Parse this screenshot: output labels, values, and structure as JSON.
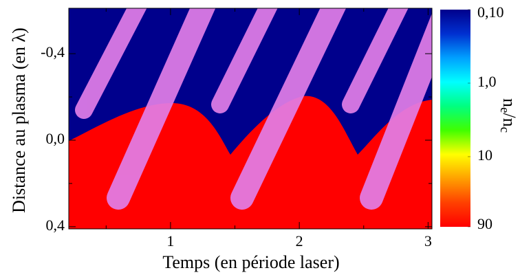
{
  "chart_data": {
    "type": "heatmap",
    "xlabel": "Temps (en période laser)",
    "ylabel": "Distance au plasma (en λ)",
    "xlim": [
      0.21,
      3.03
    ],
    "xticks": [
      1,
      2,
      3
    ],
    "xticks_minor": [
      0.5,
      1.5,
      2.5
    ],
    "ylim": [
      -0.61,
      0.41
    ],
    "y_inverted": true,
    "yticks": [
      {
        "value": -0.4,
        "label": "-0,4"
      },
      {
        "value": 0,
        "label": "0,0"
      },
      {
        "value": 0.4,
        "label": "0,4"
      }
    ],
    "yticks_minor": [
      -0.2,
      0.2
    ],
    "colorbar": {
      "label": [
        "n",
        "e",
        "/n",
        "c"
      ],
      "log": true,
      "lim": [
        0.1,
        90
      ],
      "ticks": [
        {
          "value": 0.1,
          "label": "0,10"
        },
        {
          "value": 1,
          "label": "1,0"
        },
        10,
        90
      ],
      "colormap": [
        "#00008c",
        "#0030d0",
        "#00a0ff",
        "#00ffff",
        "#00ff80",
        "#40ff00",
        "#ffff00",
        "#ffa000",
        "#ff4000",
        "#ff0000"
      ]
    },
    "beam_color": "#e27ee8"
  }
}
